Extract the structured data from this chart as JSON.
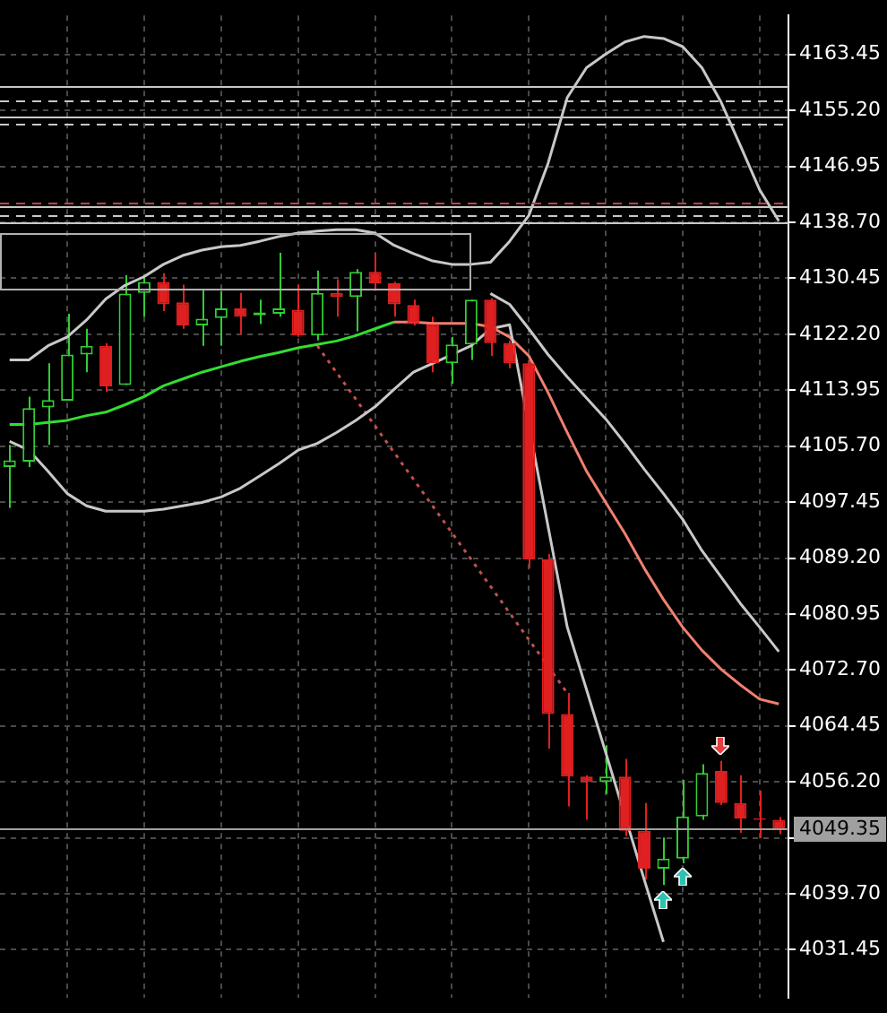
{
  "chart_data": {
    "type": "candlestick",
    "categories": [
      null,
      null,
      null,
      null,
      null,
      null,
      null,
      null,
      null,
      null,
      null,
      null,
      null,
      null,
      null,
      null,
      null,
      null,
      null,
      null,
      null,
      null,
      null,
      null,
      null,
      null,
      null,
      null,
      null,
      null,
      null,
      null,
      null,
      null,
      null,
      null,
      null,
      null,
      null,
      null,
      null
    ],
    "ohlc": [
      [
        4102.6,
        4105.9,
        4096.6,
        4103.6
      ],
      [
        4103.4,
        4113.0,
        4102.6,
        4111.3
      ],
      [
        4111.4,
        4117.9,
        4105.9,
        4112.5
      ],
      [
        4112.4,
        4125.2,
        4112.4,
        4119.2
      ],
      [
        4119.2,
        4123.0,
        4116.6,
        4120.5
      ],
      [
        4120.5,
        4120.9,
        4113.7,
        4114.5
      ],
      [
        4114.7,
        4130.9,
        4114.7,
        4128.2
      ],
      [
        4128.3,
        4130.9,
        4124.8,
        4129.9
      ],
      [
        4129.9,
        4131.2,
        4125.6,
        4126.6
      ],
      [
        4126.9,
        4129.5,
        4123.0,
        4123.5
      ],
      [
        4123.5,
        4128.9,
        4120.5,
        4124.5
      ],
      [
        4124.6,
        4128.6,
        4120.5,
        4126.0
      ],
      [
        4126.0,
        4128.3,
        4122.2,
        4124.8
      ],
      [
        4125.0,
        4127.3,
        4123.7,
        4125.4
      ],
      [
        4125.2,
        4134.2,
        4124.8,
        4126.0
      ],
      [
        4125.8,
        4129.5,
        4121.8,
        4122.0
      ],
      [
        4122.0,
        4131.6,
        4121.3,
        4128.3
      ],
      [
        4128.3,
        4130.3,
        4124.8,
        4127.7
      ],
      [
        4127.7,
        4131.8,
        4122.6,
        4131.4
      ],
      [
        4131.4,
        4134.2,
        4128.6,
        4129.7
      ],
      [
        4129.7,
        4129.9,
        4124.8,
        4126.6
      ],
      [
        4126.5,
        4127.3,
        4123.5,
        4123.7
      ],
      [
        4123.7,
        4124.8,
        4116.6,
        4117.9
      ],
      [
        4117.9,
        4121.8,
        4114.9,
        4120.7
      ],
      [
        4120.7,
        4127.3,
        4118.4,
        4127.3
      ],
      [
        4127.3,
        4127.5,
        4119.0,
        4120.9
      ],
      [
        4120.9,
        4121.3,
        4117.2,
        4117.9
      ],
      [
        4117.9,
        4118.4,
        4087.7,
        4089.0
      ],
      [
        4089.0,
        4089.8,
        4061.1,
        4066.2
      ],
      [
        4066.2,
        4069.3,
        4052.6,
        4057.0
      ],
      [
        4057.0,
        4057.2,
        4050.6,
        4056.2
      ],
      [
        4056.2,
        4061.6,
        4054.4,
        4057.0
      ],
      [
        4057.0,
        4059.6,
        4048.2,
        4049.0
      ],
      [
        4049.0,
        4053.1,
        4041.8,
        4043.4
      ],
      [
        4043.4,
        4048.0,
        4041.0,
        4044.9
      ],
      [
        4044.9,
        4056.5,
        4044.2,
        4051.1
      ],
      [
        4051.1,
        4058.8,
        4050.6,
        4057.5
      ],
      [
        4057.8,
        4059.3,
        4052.8,
        4053.1
      ],
      [
        4053.1,
        4057.2,
        4048.7,
        4050.8
      ],
      [
        4050.8,
        4054.9,
        4047.9,
        4050.6
      ],
      [
        4050.6,
        4051.0,
        4048.5,
        4049.35
      ]
    ],
    "colors": [
      "#33cc33",
      "#33cc33",
      "#33cc33",
      "#33cc33",
      "#33cc33",
      "#e02020",
      "#33cc33",
      "#33cc33",
      "#e02020",
      "#e02020",
      "#33cc33",
      "#33cc33",
      "#e02020",
      "#33cc33",
      "#33cc33",
      "#e02020",
      "#33cc33",
      "#e02020",
      "#33cc33",
      "#e02020",
      "#e02020",
      "#e02020",
      "#e02020",
      "#33cc33",
      "#33cc33",
      "#e02020",
      "#e02020",
      "#e02020",
      "#e02020",
      "#e02020",
      "#e02020",
      "#33cc33",
      "#e02020",
      "#e02020",
      "#33cc33",
      "#33cc33",
      "#33cc33",
      "#e02020",
      "#e02020",
      "#e02020",
      "#e02020"
    ],
    "series": [
      {
        "type": "line",
        "color": "#c8c8c8",
        "line_style": "solid",
        "values": [
          4118.4,
          4118.4,
          4120.5,
          4121.8,
          4124.3,
          4127.4,
          4129.4,
          4130.7,
          4132.5,
          4133.8,
          4134.6,
          4135.1,
          4135.3,
          4135.9,
          4136.6,
          4137.1,
          4137.4,
          4137.6,
          4137.6,
          4137.1,
          4135.3,
          4134.1,
          4133.0,
          4132.5,
          4132.5,
          4132.8,
          4135.9,
          4139.7,
          4147.4,
          4157.1,
          4161.5,
          4163.5,
          4165.3,
          4166.1,
          4165.8,
          4164.6,
          4161.5,
          4156.4,
          4150.0,
          4143.5,
          4138.9
        ]
      },
      {
        "type": "line",
        "color": "#c8c8c8",
        "line_style": "solid",
        "values": [
          4106.4,
          4105.1,
          4102.0,
          4098.7,
          4096.9,
          4096.1,
          4096.1,
          4096.1,
          4096.4,
          4096.9,
          4097.4,
          4098.2,
          4099.5,
          4101.3,
          4103.1,
          4105.1,
          4106.1,
          4107.7,
          4109.5,
          4111.5,
          4114.1,
          4116.6,
          4117.9,
          4119.2,
          4120.5,
          4123.0,
          4123.6,
          null,
          null,
          4079.0,
          4069.8,
          4060.5,
          null,
          4041.8,
          4032.6,
          null,
          null,
          null,
          null,
          null,
          null
        ]
      },
      {
        "type": "line",
        "color": "#c8c8c8",
        "line_style": "solid",
        "values": [
          null,
          null,
          null,
          null,
          null,
          null,
          null,
          null,
          null,
          null,
          null,
          null,
          null,
          null,
          null,
          null,
          null,
          null,
          null,
          null,
          null,
          null,
          null,
          null,
          null,
          4128.2,
          4126.6,
          4123.0,
          4119.2,
          4115.9,
          4112.8,
          4109.7,
          4106.1,
          4102.3,
          4098.7,
          4094.9,
          4090.3,
          4086.4,
          4082.5,
          4079.0,
          4075.4
        ]
      },
      {
        "type": "line",
        "color": "#33dd33",
        "line_style": "solid",
        "values": [
          4108.9,
          4108.9,
          4109.2,
          4109.5,
          4110.2,
          4110.7,
          4111.8,
          4113.0,
          4114.6,
          4115.6,
          4116.6,
          4117.4,
          4118.2,
          4118.9,
          4119.5,
          4120.2,
          4120.7,
          4121.2,
          4122.0,
          4123.0,
          4124.0,
          null,
          null,
          null,
          null,
          null,
          null,
          null,
          null,
          null,
          null,
          null,
          null,
          null,
          null,
          null,
          null,
          null,
          null,
          null,
          null
        ]
      },
      {
        "type": "line",
        "color": "#f08070",
        "line_style": "solid",
        "values": [
          null,
          null,
          null,
          null,
          null,
          null,
          null,
          null,
          null,
          null,
          null,
          null,
          null,
          null,
          null,
          null,
          null,
          null,
          null,
          null,
          4124.0,
          4124.0,
          4123.8,
          4123.8,
          4123.8,
          4123.3,
          4121.8,
          4119.0,
          4113.6,
          4107.7,
          4102.0,
          4097.4,
          4092.8,
          4087.7,
          4083.1,
          4079.0,
          4075.6,
          4072.8,
          4070.5,
          4068.4,
          4067.7
        ]
      },
      {
        "type": "line",
        "color": "#c05050",
        "line_style": "dotted",
        "values": [
          null,
          null,
          null,
          null,
          null,
          null,
          null,
          null,
          null,
          null,
          null,
          null,
          null,
          null,
          null,
          null,
          4120.5,
          null,
          null,
          null,
          null,
          null,
          null,
          null,
          null,
          null,
          null,
          null,
          null,
          4069.3,
          null,
          null,
          null,
          null,
          null,
          null,
          null,
          null,
          null,
          null,
          null
        ]
      }
    ],
    "ref_lines": [
      {
        "axis": "y",
        "value": 4158.7,
        "color": "#c8c8c8",
        "line_style": "solid"
      },
      {
        "axis": "y",
        "value": 4156.6,
        "color": "#c8c8c8",
        "line_style": "dashed"
      },
      {
        "axis": "y",
        "value": 4154.3,
        "color": "#c8c8c8",
        "line_style": "solid"
      },
      {
        "axis": "y",
        "value": 4153.3,
        "color": "#c8c8c8",
        "line_style": "dashed"
      },
      {
        "axis": "y",
        "value": 4141.5,
        "color": "#c04050",
        "line_style": "dashed"
      },
      {
        "axis": "y",
        "value": 4141.0,
        "color": "#c8c8c8",
        "line_style": "solid"
      },
      {
        "axis": "y",
        "value": 4139.7,
        "color": "#c8c8c8",
        "line_style": "dashed"
      },
      {
        "axis": "y",
        "value": 4138.7,
        "color": "#c8c8c8",
        "line_style": "solid"
      },
      {
        "axis": "y",
        "value": 4049.35,
        "label": "4049.35",
        "color": "#a0a0a0",
        "line_style": "solid"
      }
    ],
    "ylim": [
      4024.4,
      4169.2
    ],
    "yticks": [
      4031.45,
      {
        "value": 4039.7,
        "label": "4039.70"
      },
      {
        "value": 4047.95,
        "label": null
      },
      {
        "value": 4056.2,
        "label": "4056.20"
      },
      4064.45,
      {
        "value": 4072.7,
        "label": "4072.70"
      },
      4080.95,
      {
        "value": 4089.2,
        "label": "4089.20"
      },
      4097.45,
      {
        "value": 4105.7,
        "label": "4105.70"
      },
      4113.95,
      {
        "value": 4122.2,
        "label": "4122.20"
      },
      4130.45,
      {
        "value": 4138.7,
        "label": "4138.70"
      },
      4146.95,
      {
        "value": 4155.2,
        "label": "4155.20"
      },
      4163.45
    ],
    "grid": true,
    "tick_labels": "y",
    "legend": false
  }
}
